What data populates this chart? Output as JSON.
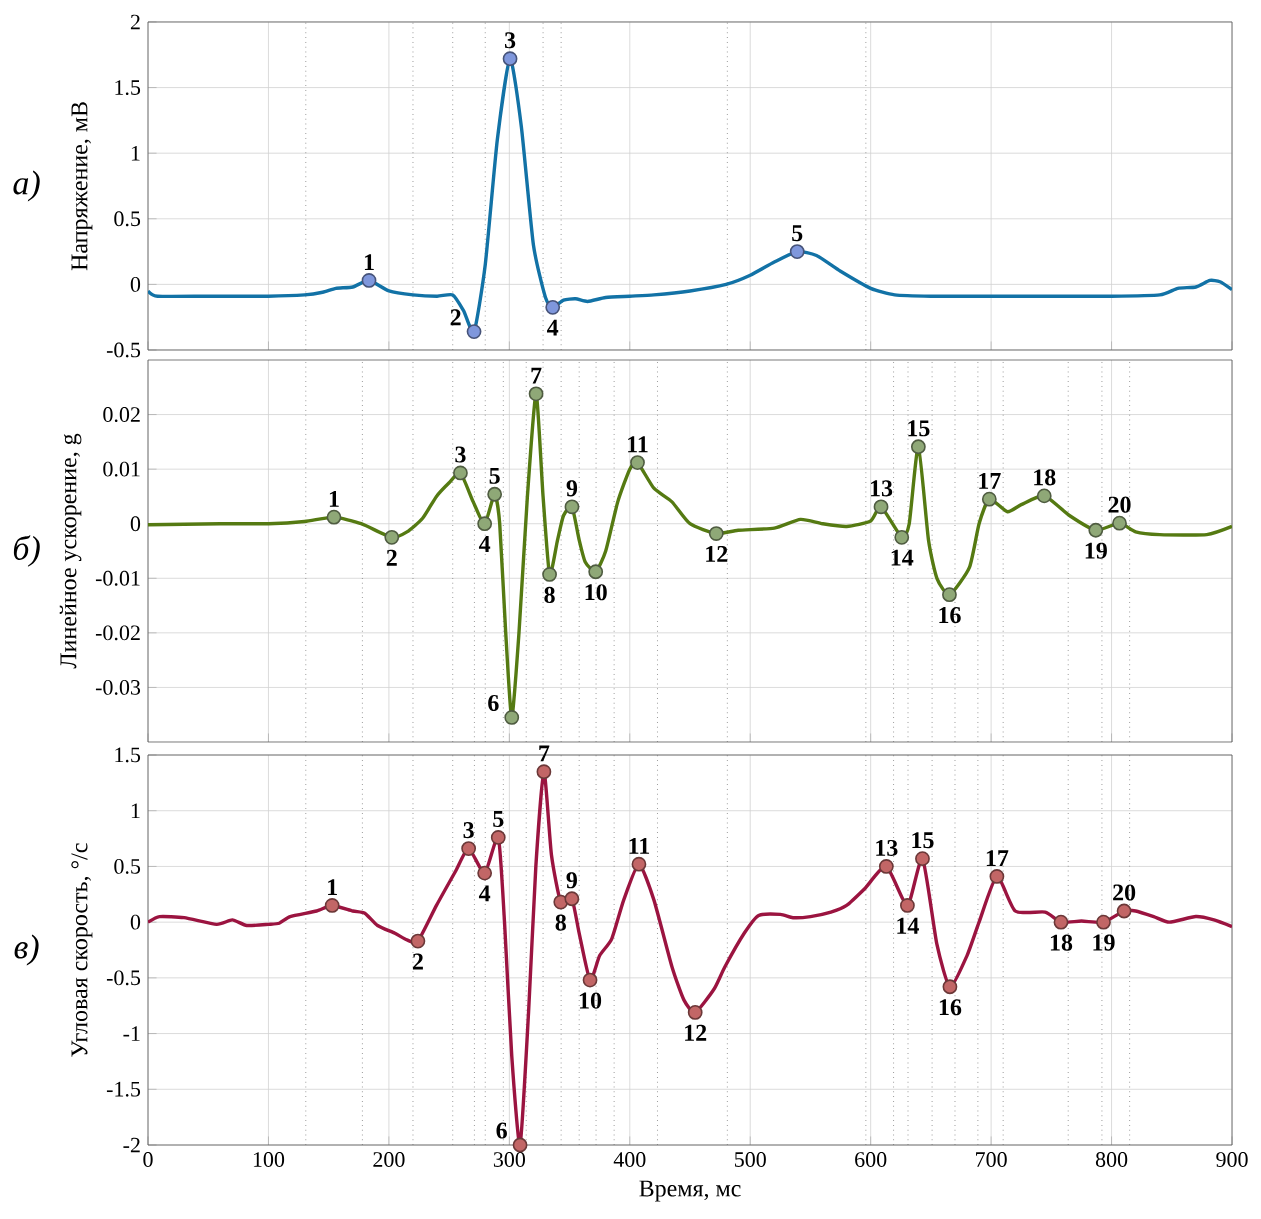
{
  "chart_data": [
    {
      "type": "line",
      "ylabel": "Напряжение, мВ",
      "xlim": [
        0,
        900
      ],
      "xticks": [
        0,
        100,
        200,
        300,
        400,
        500,
        600,
        700,
        800,
        900
      ],
      "ylim": [
        -0.5,
        2
      ],
      "yticks": [
        -0.5,
        0,
        0.5,
        1,
        1.5,
        2
      ],
      "grid": true,
      "tick_labels": "y",
      "series": [
        {
          "type": "line",
          "color": "#1272a6",
          "line_style": "solid",
          "x": [
            0,
            8,
            50,
            100,
            130,
            145,
            156,
            170,
            183.5,
            200,
            220,
            240,
            253,
            262,
            270.7,
            280,
            290,
            300.6,
            310,
            320,
            330,
            336,
            345,
            355,
            365,
            380,
            400,
            420,
            450,
            480,
            500,
            520,
            539,
            555,
            575,
            600,
            620,
            650,
            700,
            750,
            800,
            840,
            855,
            870,
            881.6,
            890,
            900
          ],
          "values": [
            -0.05,
            -0.09,
            -0.09,
            -0.09,
            -0.08,
            -0.06,
            -0.03,
            -0.02,
            0.03,
            -0.05,
            -0.08,
            -0.09,
            -0.08,
            -0.2,
            -0.36,
            0.15,
            1.1,
            1.72,
            1.2,
            0.3,
            -0.1,
            -0.175,
            -0.12,
            -0.11,
            -0.13,
            -0.1,
            -0.09,
            -0.08,
            -0.05,
            0,
            0.07,
            0.17,
            0.25,
            0.22,
            0.1,
            -0.03,
            -0.08,
            -0.09,
            -0.09,
            -0.09,
            -0.09,
            -0.08,
            -0.03,
            -0.02,
            0.03,
            0.02,
            -0.04
          ]
        },
        {
          "type": "scatter",
          "marker": "circle",
          "color": "#7f97dc",
          "x": [
            183.5,
            270.7,
            300.6,
            336,
            539
          ],
          "values": [
            0.03,
            -0.36,
            1.72,
            -0.175,
            0.25
          ]
        }
      ],
      "ref_lines": [
        {
          "axis": "x",
          "value": 131,
          "line_style": "dotted"
        },
        {
          "axis": "x",
          "value": 220,
          "line_style": "dotted"
        },
        {
          "axis": "x",
          "value": 253,
          "line_style": "dotted"
        },
        {
          "axis": "x",
          "value": 280,
          "line_style": "dotted"
        },
        {
          "axis": "x",
          "value": 328,
          "line_style": "dotted"
        },
        {
          "axis": "x",
          "value": 343,
          "line_style": "dotted"
        },
        {
          "axis": "x",
          "value": 481,
          "line_style": "dotted"
        },
        {
          "axis": "x",
          "value": 596,
          "line_style": "dotted"
        }
      ],
      "annotations": [
        "а)",
        {
          "text": "1",
          "x": 183.5,
          "y": 0.03
        },
        {
          "text": "2",
          "x": 270.7,
          "y": -0.36
        },
        {
          "text": "3",
          "x": 300.6,
          "y": 1.72
        },
        {
          "text": "4",
          "x": 336,
          "y": -0.175
        },
        {
          "text": "5",
          "x": 539,
          "y": 0.25
        }
      ]
    },
    {
      "type": "line",
      "ylabel": "Линейное ускорение, g",
      "xlim": [
        0,
        900
      ],
      "xticks": [
        0,
        100,
        200,
        300,
        400,
        500,
        600,
        700,
        800,
        900
      ],
      "ylim": [
        -0.04,
        0.03
      ],
      "yticks": [
        -0.03,
        -0.02,
        -0.01,
        0,
        0.01,
        0.02
      ],
      "grid": true,
      "tick_labels": "y",
      "series": [
        {
          "type": "line",
          "color": "#557a12",
          "line_style": "solid",
          "x": [
            0,
            30,
            60,
            100,
            130,
            154.4,
            177,
            202.4,
            215,
            228,
            239.5,
            250,
            259.4,
            270,
            279.5,
            287.8,
            292,
            297,
            302,
            308,
            315,
            322.2,
            328,
            333.4,
            340,
            345,
            352,
            358,
            363,
            371.7,
            380,
            390,
            400,
            406.4,
            420,
            435,
            450,
            471.8,
            490,
            520,
            541.7,
            560,
            580,
            600,
            608.6,
            625.8,
            632,
            639.6,
            648,
            655,
            665.4,
            682,
            690,
            698.5,
            713.6,
            725,
            744.1,
            765,
            786.9,
            806.6,
            820,
            840,
            879,
            900
          ],
          "values": [
            -0.0002,
            -0.0001,
            0,
            0,
            0.0004,
            0.0012,
            0,
            -0.0025,
            -0.0015,
            0.001,
            0.005,
            0.0075,
            0.0093,
            0.004,
            0,
            0.0054,
            0,
            -0.02,
            -0.0355,
            -0.02,
            0.005,
            0.0238,
            0.005,
            -0.0093,
            -0.003,
            0.0015,
            0.0031,
            -0.003,
            -0.007,
            -0.0088,
            -0.005,
            0.004,
            0.01,
            0.0112,
            0.0065,
            0.004,
            0,
            -0.0018,
            -0.0012,
            -0.0008,
            0.0008,
            0,
            -0.0005,
            0.0005,
            0.0031,
            -0.0025,
            0,
            0.0141,
            -0.003,
            -0.01,
            -0.013,
            -0.008,
            0,
            0.0045,
            0.0022,
            0.0035,
            0.0051,
            0.0015,
            -0.0012,
            0.0001,
            -0.0015,
            -0.002,
            -0.002,
            -0.0005
          ]
        },
        {
          "type": "scatter",
          "marker": "circle",
          "color": "#8fa877",
          "x": [
            154.4,
            202.4,
            259.4,
            279.5,
            287.8,
            302,
            322.2,
            333.4,
            352,
            371.7,
            406.4,
            471.8,
            608.6,
            625.8,
            639.6,
            665.4,
            698.5,
            744.1,
            786.9,
            806.6
          ],
          "values": [
            0.0012,
            -0.0025,
            0.0093,
            0,
            0.0054,
            -0.0355,
            0.0238,
            -0.0093,
            0.0031,
            -0.0088,
            0.0112,
            -0.0018,
            0.0031,
            -0.0025,
            0.0141,
            -0.013,
            0.0045,
            0.0051,
            -0.0012,
            0.0001
          ]
        }
      ],
      "ref_lines": [
        {
          "axis": "x",
          "value": 131,
          "line_style": "dotted"
        },
        {
          "axis": "x",
          "value": 178,
          "line_style": "dotted"
        },
        {
          "axis": "x",
          "value": 220,
          "line_style": "dotted"
        },
        {
          "axis": "x",
          "value": 253,
          "line_style": "dotted"
        },
        {
          "axis": "x",
          "value": 271,
          "line_style": "dotted"
        },
        {
          "axis": "x",
          "value": 280,
          "line_style": "dotted"
        },
        {
          "axis": "x",
          "value": 295,
          "line_style": "dotted"
        },
        {
          "axis": "x",
          "value": 314,
          "line_style": "dotted"
        },
        {
          "axis": "x",
          "value": 328,
          "line_style": "dotted"
        },
        {
          "axis": "x",
          "value": 343,
          "line_style": "dotted"
        },
        {
          "axis": "x",
          "value": 358,
          "line_style": "dotted"
        },
        {
          "axis": "x",
          "value": 372,
          "line_style": "dotted"
        },
        {
          "axis": "x",
          "value": 387,
          "line_style": "dotted"
        },
        {
          "axis": "x",
          "value": 423,
          "line_style": "dotted"
        },
        {
          "axis": "x",
          "value": 481,
          "line_style": "dotted"
        },
        {
          "axis": "x",
          "value": 596,
          "line_style": "dotted"
        },
        {
          "axis": "x",
          "value": 619,
          "line_style": "dotted"
        },
        {
          "axis": "x",
          "value": 631,
          "line_style": "dotted"
        },
        {
          "axis": "x",
          "value": 651,
          "line_style": "dotted"
        },
        {
          "axis": "x",
          "value": 670,
          "line_style": "dotted"
        },
        {
          "axis": "x",
          "value": 689,
          "line_style": "dotted"
        },
        {
          "axis": "x",
          "value": 710,
          "line_style": "dotted"
        },
        {
          "axis": "x",
          "value": 764,
          "line_style": "dotted"
        },
        {
          "axis": "x",
          "value": 792,
          "line_style": "dotted"
        },
        {
          "axis": "x",
          "value": 815,
          "line_style": "dotted"
        }
      ],
      "annotations": [
        "б)",
        {
          "text": "1",
          "x": 154.4,
          "y": 0.0012
        },
        {
          "text": "2",
          "x": 202.4,
          "y": -0.0025
        },
        {
          "text": "3",
          "x": 259.4,
          "y": 0.0093
        },
        {
          "text": "4",
          "x": 279.5,
          "y": 0
        },
        {
          "text": "5",
          "x": 287.8,
          "y": 0.0054
        },
        {
          "text": "6",
          "x": 302,
          "y": -0.0355
        },
        {
          "text": "7",
          "x": 322.2,
          "y": 0.0238
        },
        {
          "text": "8",
          "x": 333.4,
          "y": -0.0093
        },
        {
          "text": "9",
          "x": 352,
          "y": 0.0031
        },
        {
          "text": "10",
          "x": 371.7,
          "y": -0.0088
        },
        {
          "text": "11",
          "x": 406.4,
          "y": 0.0112
        },
        {
          "text": "12",
          "x": 471.8,
          "y": -0.0018
        },
        {
          "text": "13",
          "x": 608.6,
          "y": 0.0031
        },
        {
          "text": "14",
          "x": 625.8,
          "y": -0.0025
        },
        {
          "text": "15",
          "x": 639.6,
          "y": 0.0141
        },
        {
          "text": "16",
          "x": 665.4,
          "y": -0.013
        },
        {
          "text": "17",
          "x": 698.5,
          "y": 0.0045
        },
        {
          "text": "18",
          "x": 744.1,
          "y": 0.0051
        },
        {
          "text": "19",
          "x": 786.9,
          "y": -0.0012
        },
        {
          "text": "20",
          "x": 806.6,
          "y": 0.0001
        }
      ]
    },
    {
      "type": "line",
      "ylabel": "Угловая скорость, °/с",
      "xlabel": "Время, мс",
      "xlim": [
        0,
        900
      ],
      "xticks": [
        0,
        100,
        200,
        300,
        400,
        500,
        600,
        700,
        800,
        900
      ],
      "ylim": [
        -2,
        1.5
      ],
      "yticks": [
        -2,
        -1.5,
        -1,
        -0.5,
        0,
        0.5,
        1,
        1.5
      ],
      "grid": true,
      "series": [
        {
          "type": "line",
          "color": "#9b1440",
          "line_style": "solid",
          "x": [
            0,
            9.6,
            30,
            57,
            70,
            82,
            100,
            109,
            118,
            140,
            152.9,
            170,
            180,
            190.6,
            205,
            215,
            224.1,
            239.5,
            255,
            266.2,
            279.5,
            290.8,
            296,
            302,
            308.9,
            316,
            322,
            328.7,
            335,
            342.7,
            351.9,
            358,
            367,
            375,
            385,
            395,
            407.6,
            420,
            435,
            445,
            454.3,
            470,
            479,
            495,
            507,
            525,
            535.5,
            550,
            567,
            580,
            595,
            613,
            630.5,
            643,
            655,
            665.8,
            680,
            690,
            704.8,
            720,
            744.8,
            758,
            775,
            793.3,
            810.4,
            820,
            835,
            848,
            870,
            885,
            900
          ],
          "values": [
            0,
            0.05,
            0.04,
            -0.02,
            0.02,
            -0.03,
            -0.02,
            -0.01,
            0.05,
            0.1,
            0.15,
            0.1,
            0.08,
            -0.03,
            -0.1,
            -0.16,
            -0.17,
            0.15,
            0.45,
            0.66,
            0.44,
            0.76,
            0,
            -1.2,
            -2,
            -0.8,
            0.5,
            1.35,
            0.6,
            0.18,
            0.21,
            -0.1,
            -0.52,
            -0.3,
            -0.15,
            0.2,
            0.52,
            0.2,
            -0.4,
            -0.7,
            -0.81,
            -0.6,
            -0.4,
            -0.1,
            0.06,
            0.07,
            0.04,
            0.05,
            0.09,
            0.15,
            0.3,
            0.5,
            0.15,
            0.57,
            -0.2,
            -0.58,
            -0.3,
            0,
            0.41,
            0.1,
            0.09,
            0,
            0.01,
            0,
            0.1,
            0.1,
            0.05,
            0,
            0.05,
            0.02,
            -0.04
          ]
        },
        {
          "type": "scatter",
          "marker": "circle",
          "color": "#c26666",
          "x": [
            152.9,
            224.1,
            266.2,
            279.5,
            290.8,
            308.9,
            328.7,
            342.7,
            351.9,
            367,
            407.6,
            454.3,
            613,
            630.5,
            643,
            665.8,
            704.8,
            758,
            793.3,
            810.4
          ],
          "values": [
            0.15,
            -0.17,
            0.66,
            0.44,
            0.76,
            -2,
            1.35,
            0.18,
            0.21,
            -0.52,
            0.52,
            -0.81,
            0.5,
            0.15,
            0.57,
            -0.58,
            0.41,
            0,
            0,
            0.1
          ]
        }
      ],
      "ref_lines": [
        {
          "axis": "x",
          "value": 131,
          "line_style": "dotted"
        },
        {
          "axis": "x",
          "value": 178,
          "line_style": "dotted"
        },
        {
          "axis": "x",
          "value": 220,
          "line_style": "dotted"
        },
        {
          "axis": "x",
          "value": 253,
          "line_style": "dotted"
        },
        {
          "axis": "x",
          "value": 271,
          "line_style": "dotted"
        },
        {
          "axis": "x",
          "value": 280,
          "line_style": "dotted"
        },
        {
          "axis": "x",
          "value": 295,
          "line_style": "dotted"
        },
        {
          "axis": "x",
          "value": 314,
          "line_style": "dotted"
        },
        {
          "axis": "x",
          "value": 328,
          "line_style": "dotted"
        },
        {
          "axis": "x",
          "value": 343,
          "line_style": "dotted"
        },
        {
          "axis": "x",
          "value": 358,
          "line_style": "dotted"
        },
        {
          "axis": "x",
          "value": 372,
          "line_style": "dotted"
        },
        {
          "axis": "x",
          "value": 387,
          "line_style": "dotted"
        },
        {
          "axis": "x",
          "value": 423,
          "line_style": "dotted"
        },
        {
          "axis": "x",
          "value": 481,
          "line_style": "dotted"
        },
        {
          "axis": "x",
          "value": 596,
          "line_style": "dotted"
        },
        {
          "axis": "x",
          "value": 619,
          "line_style": "dotted"
        },
        {
          "axis": "x",
          "value": 631,
          "line_style": "dotted"
        },
        {
          "axis": "x",
          "value": 651,
          "line_style": "dotted"
        },
        {
          "axis": "x",
          "value": 670,
          "line_style": "dotted"
        },
        {
          "axis": "x",
          "value": 689,
          "line_style": "dotted"
        },
        {
          "axis": "x",
          "value": 710,
          "line_style": "dotted"
        },
        {
          "axis": "x",
          "value": 764,
          "line_style": "dotted"
        },
        {
          "axis": "x",
          "value": 792,
          "line_style": "dotted"
        },
        {
          "axis": "x",
          "value": 815,
          "line_style": "dotted"
        }
      ],
      "annotations": [
        "в)",
        {
          "text": "1",
          "x": 152.9,
          "y": 0.15
        },
        {
          "text": "2",
          "x": 224.1,
          "y": -0.17
        },
        {
          "text": "3",
          "x": 266.2,
          "y": 0.66
        },
        {
          "text": "4",
          "x": 279.5,
          "y": 0.44
        },
        {
          "text": "5",
          "x": 290.8,
          "y": 0.76
        },
        {
          "text": "6",
          "x": 308.9,
          "y": -2
        },
        {
          "text": "7",
          "x": 328.7,
          "y": 1.35
        },
        {
          "text": "8",
          "x": 342.7,
          "y": 0.18
        },
        {
          "text": "9",
          "x": 351.9,
          "y": 0.21
        },
        {
          "text": "10",
          "x": 367,
          "y": -0.52
        },
        {
          "text": "11",
          "x": 407.6,
          "y": 0.52
        },
        {
          "text": "12",
          "x": 454.3,
          "y": -0.81
        },
        {
          "text": "13",
          "x": 613,
          "y": 0.5
        },
        {
          "text": "14",
          "x": 630.5,
          "y": 0.15
        },
        {
          "text": "15",
          "x": 643,
          "y": 0.57
        },
        {
          "text": "16",
          "x": 665.8,
          "y": -0.58
        },
        {
          "text": "17",
          "x": 704.8,
          "y": 0.41
        },
        {
          "text": "18",
          "x": 758,
          "y": 0
        },
        {
          "text": "19",
          "x": 793.3,
          "y": 0
        },
        {
          "text": "20",
          "x": 810.4,
          "y": 0.1
        }
      ]
    }
  ]
}
